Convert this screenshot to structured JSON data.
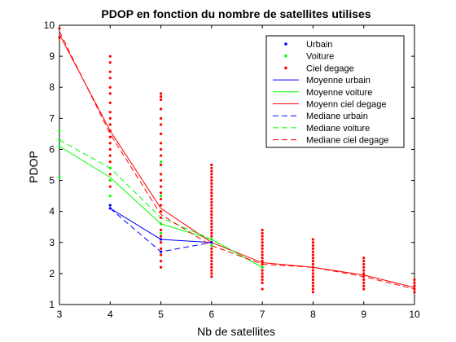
{
  "chart_data": {
    "type": "line",
    "title": "PDOP en fonction du nombre de satellites utilises",
    "xlabel": "Nb de satellites",
    "ylabel": "PDOP",
    "xlim": [
      3,
      10
    ],
    "ylim": [
      1,
      10
    ],
    "xticks": [
      3,
      4,
      5,
      6,
      7,
      8,
      9,
      10
    ],
    "yticks": [
      1,
      2,
      3,
      4,
      5,
      6,
      7,
      8,
      9,
      10
    ],
    "grid": false,
    "legend_position": "top-right",
    "scatter_series": [
      {
        "name": "Urbain",
        "color": "#0000ff",
        "points": [
          [
            4,
            4.1
          ],
          [
            4,
            4.2
          ],
          [
            5,
            2.7
          ],
          [
            5,
            3.1
          ],
          [
            6,
            3.0
          ]
        ]
      },
      {
        "name": "Voiture",
        "color": "#00ff00",
        "points": [
          [
            3,
            5.1
          ],
          [
            3,
            6.1
          ],
          [
            3,
            6.3
          ],
          [
            3,
            6.6
          ],
          [
            4,
            4.2
          ],
          [
            4,
            4.5
          ],
          [
            4,
            5.0
          ],
          [
            4,
            5.4
          ],
          [
            5,
            3.3
          ],
          [
            5,
            3.6
          ],
          [
            5,
            4.5
          ],
          [
            5,
            5.6
          ],
          [
            6,
            3.1
          ],
          [
            6,
            2.9
          ],
          [
            7,
            2.2
          ]
        ]
      },
      {
        "name": "Ciel degage",
        "color": "#ff0000",
        "points_by_x": [
          {
            "x": 3,
            "values": [
              9.6,
              9.9
            ]
          },
          {
            "x": 4,
            "values": [
              4.2,
              4.8,
              5.0,
              5.2,
              5.4,
              5.6,
              5.8,
              6.0,
              6.2,
              6.4,
              6.6,
              6.8,
              7.0,
              7.2,
              7.5,
              7.8,
              8.0,
              8.3,
              8.5,
              8.8,
              9.0
            ]
          },
          {
            "x": 5,
            "values": [
              2.2,
              2.4,
              2.6,
              2.8,
              3.0,
              3.2,
              3.4,
              3.6,
              3.8,
              4.0,
              4.2,
              4.4,
              4.6,
              4.8,
              5.0,
              5.2,
              5.5,
              5.8,
              6.0,
              6.2,
              6.5,
              6.8,
              7.0,
              7.3,
              7.6,
              7.7,
              7.8
            ]
          },
          {
            "x": 6,
            "values": [
              1.9,
              2.0,
              2.1,
              2.2,
              2.3,
              2.4,
              2.5,
              2.6,
              2.7,
              2.8,
              2.9,
              3.0,
              3.1,
              3.2,
              3.3,
              3.4,
              3.5,
              3.6,
              3.7,
              3.8,
              3.9,
              4.0,
              4.1,
              4.2,
              4.3,
              4.4,
              4.5,
              4.6,
              4.7,
              4.8,
              4.9,
              5.0,
              5.1,
              5.2,
              5.3,
              5.4,
              5.5
            ]
          },
          {
            "x": 7,
            "values": [
              1.5,
              1.7,
              1.8,
              1.9,
              2.0,
              2.1,
              2.2,
              2.3,
              2.4,
              2.5,
              2.6,
              2.7,
              2.8,
              2.9,
              3.0,
              3.1,
              3.2,
              3.3,
              3.4
            ]
          },
          {
            "x": 8,
            "values": [
              1.4,
              1.5,
              1.6,
              1.7,
              1.8,
              1.9,
              2.0,
              2.1,
              2.2,
              2.3,
              2.4,
              2.5,
              2.6,
              2.7,
              2.8,
              2.9,
              3.0,
              3.1
            ]
          },
          {
            "x": 9,
            "values": [
              1.5,
              1.6,
              1.7,
              1.8,
              1.9,
              2.0,
              2.1,
              2.2,
              2.3,
              2.4,
              2.5
            ]
          },
          {
            "x": 10,
            "values": [
              1.4,
              1.5,
              1.6,
              1.7,
              1.8
            ]
          }
        ]
      }
    ],
    "line_series": [
      {
        "name": "Moyenne urbain",
        "color": "#0000ff",
        "dash": "solid",
        "x": [
          4,
          5,
          6
        ],
        "values": [
          4.1,
          3.1,
          3.0
        ]
      },
      {
        "name": "Moyenne voiture",
        "color": "#00ff00",
        "dash": "solid",
        "x": [
          3,
          4,
          5,
          6,
          7
        ],
        "values": [
          6.1,
          5.1,
          3.6,
          3.1,
          2.2
        ]
      },
      {
        "name": "Moyenn ciel degage",
        "color": "#ff0000",
        "dash": "solid",
        "x": [
          3,
          4,
          5,
          6,
          7,
          8,
          9,
          10
        ],
        "values": [
          9.7,
          6.6,
          4.1,
          3.0,
          2.35,
          2.2,
          1.95,
          1.55
        ]
      },
      {
        "name": "Mediane urbain",
        "color": "#0000ff",
        "dash": "dashed",
        "x": [
          4,
          5,
          6
        ],
        "values": [
          4.1,
          2.7,
          3.0
        ]
      },
      {
        "name": "Mediane voiture",
        "color": "#00ff00",
        "dash": "dashed",
        "x": [
          3,
          4,
          5,
          6,
          7
        ],
        "values": [
          6.3,
          5.4,
          3.8,
          3.1,
          2.2
        ]
      },
      {
        "name": "Mediane ciel degage",
        "color": "#ff0000",
        "dash": "dashed",
        "x": [
          3,
          4,
          5,
          6,
          7,
          8,
          9,
          10
        ],
        "values": [
          9.8,
          6.5,
          3.9,
          2.9,
          2.3,
          2.2,
          1.9,
          1.5
        ]
      }
    ]
  }
}
